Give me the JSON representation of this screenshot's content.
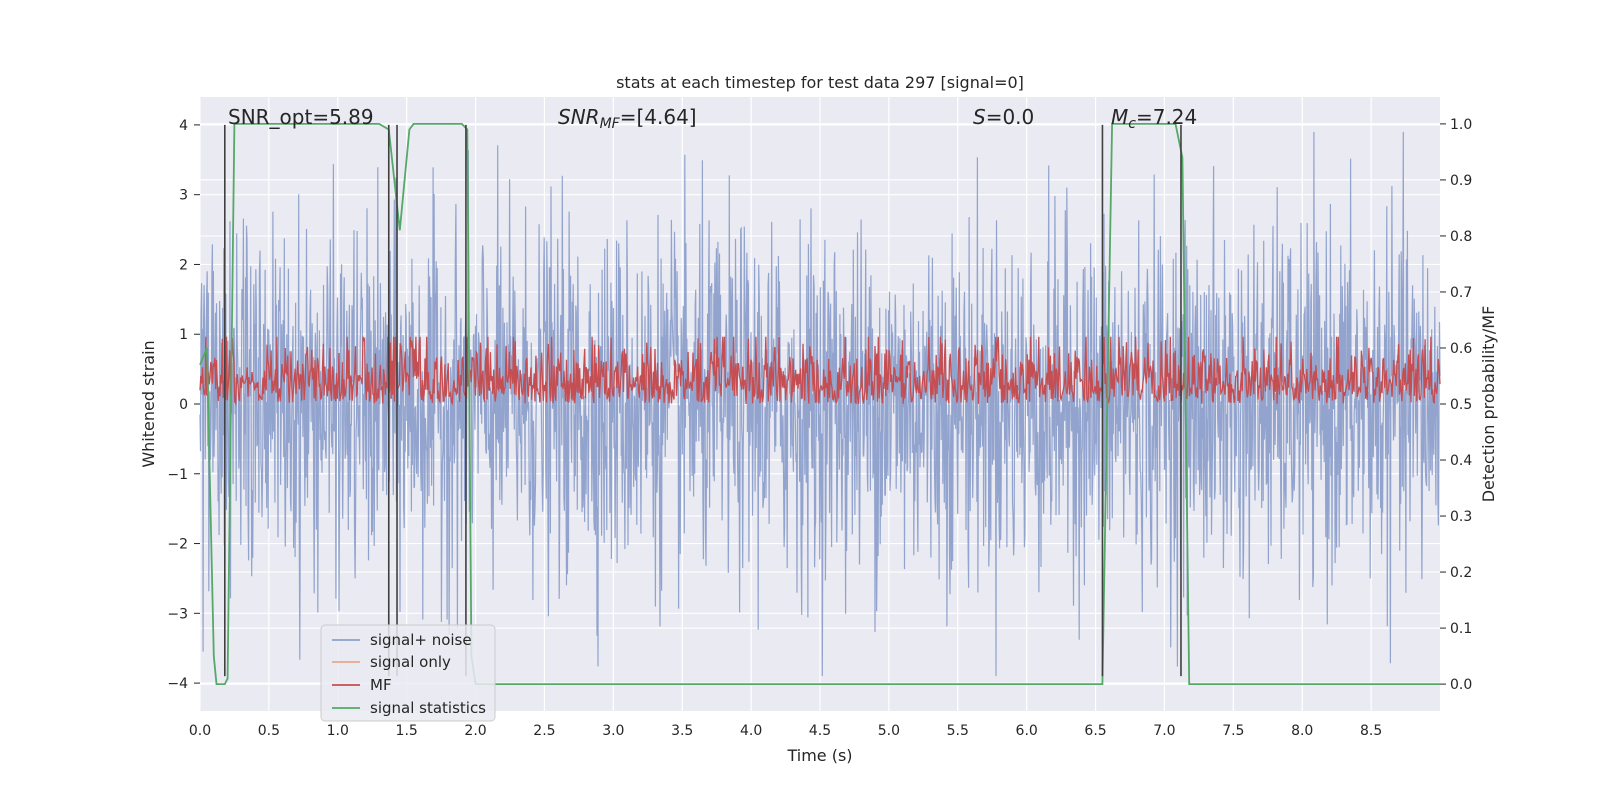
{
  "chart_data": {
    "type": "line",
    "title": "stats at each timestep for test data 297 [signal=0]",
    "xlabel": "Time (s)",
    "ylabel_left": "Whitened strain",
    "ylabel_right": "Detection probability/MF",
    "xlim": [
      0.0,
      9.0
    ],
    "ylim_left": [
      -4.4,
      4.4
    ],
    "ylim_right": [
      -0.048,
      1.048
    ],
    "x_ticks": [
      "0.0",
      "0.5",
      "1.0",
      "1.5",
      "2.0",
      "2.5",
      "3.0",
      "3.5",
      "4.0",
      "4.5",
      "5.0",
      "5.5",
      "6.0",
      "6.5",
      "7.0",
      "7.5",
      "8.0",
      "8.5"
    ],
    "y_left_ticks": [
      "4",
      "3",
      "2",
      "1",
      "0",
      "−1",
      "−2",
      "−3",
      "−4"
    ],
    "y_right_ticks": [
      "1.0",
      "0.9",
      "0.8",
      "0.7",
      "0.6",
      "0.5",
      "0.4",
      "0.3",
      "0.2",
      "0.1",
      "0.0"
    ],
    "annotations": {
      "snr_opt": "SNR_opt=5.89",
      "snr_mf_main": "SNR",
      "snr_mf_sub": "MF",
      "snr_mf_value": "=[4.64]",
      "s_main": "S",
      "s_value": "=0.0",
      "mc_main": "M",
      "mc_sub": "c",
      "mc_value": "=7.24"
    },
    "series": [
      {
        "name": "signal+ noise",
        "color": "#8da0cb",
        "axis": "left",
        "description": "whitened strain noise, amplitude roughly within ±3.5"
      },
      {
        "name": "signal only",
        "color": "#e8a88a",
        "axis": "left",
        "values": []
      },
      {
        "name": "MF",
        "color": "#c44e52",
        "axis": "right",
        "description": "matched filter output, mostly 0.5 to 0.65"
      },
      {
        "name": "signal statistics",
        "color": "#55a868",
        "axis": "right",
        "x": [
          0.0,
          0.05,
          0.1,
          0.12,
          0.18,
          0.2,
          0.25,
          0.3,
          1.0,
          1.3,
          1.37,
          1.45,
          1.52,
          1.55,
          1.9,
          1.94,
          1.97,
          2.0,
          6.5,
          6.55,
          6.62,
          7.05,
          7.08,
          7.13,
          7.18,
          7.5,
          8.0,
          8.5,
          9.0
        ],
        "values": [
          0.57,
          0.6,
          0.05,
          0.0,
          0.0,
          0.01,
          1.0,
          1.0,
          1.0,
          1.0,
          0.99,
          0.81,
          0.99,
          1.0,
          1.0,
          0.99,
          0.05,
          0.0,
          0.0,
          0.0,
          1.0,
          1.0,
          1.0,
          0.94,
          0.0,
          0.0,
          0.0,
          0.0,
          0.0
        ]
      }
    ],
    "vertical_lines_x": [
      0.18,
      1.37,
      1.43,
      1.93,
      6.55,
      7.12
    ],
    "vertical_lines_range": [
      -3.9,
      4.0
    ],
    "legend": {
      "position": "bottom-left",
      "entries": [
        "signal+ noise",
        "signal only",
        "MF",
        "signal statistics"
      ]
    },
    "grid": true
  }
}
